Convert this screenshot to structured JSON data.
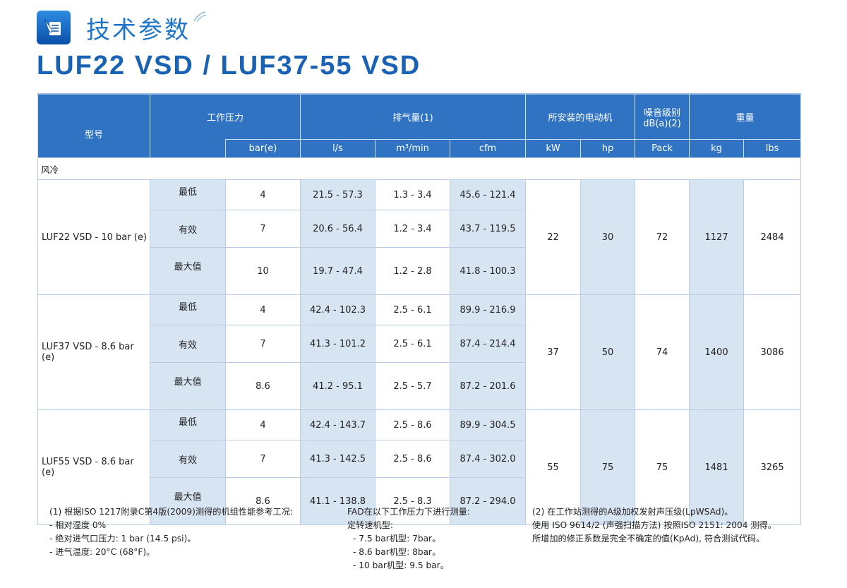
{
  "header": {
    "title": "技术参数",
    "subtitle": "LUF22 VSD / LUF37-55 VSD"
  },
  "table": {
    "headers": {
      "model": "型号",
      "pressure": "工作压力",
      "fad": "排气量(1)",
      "motor": "所安装的电动机",
      "noise_line1": "噪音级别",
      "noise_line2": "dB(a)(2)",
      "weight": "重量"
    },
    "units": [
      "bar(e)",
      "l/s",
      "m³/min",
      "cfm",
      "kW",
      "hp",
      "Pack",
      "kg",
      "lbs"
    ],
    "section_label": "风冷",
    "models": [
      {
        "name": "LUF22 VSD - 10 bar (e)",
        "kw": "22",
        "hp": "30",
        "noise": "72",
        "kg": "1127",
        "lbs": "2484",
        "rows": [
          {
            "level": "最低",
            "bar": "4",
            "ls": "21.5 - 57.3",
            "m3": "1.3 - 3.4",
            "cfm": "45.6 - 121.4"
          },
          {
            "level": "有效",
            "bar": "7",
            "ls": "20.6 - 56.4",
            "m3": "1.2 - 3.4",
            "cfm": "43.7 - 119.5"
          },
          {
            "level": "最大值",
            "bar": "10",
            "ls": "19.7 - 47.4",
            "m3": "1.2 - 2.8",
            "cfm": "41.8 - 100.3"
          }
        ]
      },
      {
        "name": "LUF37 VSD - 8.6 bar (e)",
        "kw": "37",
        "hp": "50",
        "noise": "74",
        "kg": "1400",
        "lbs": "3086",
        "rows": [
          {
            "level": "最低",
            "bar": "4",
            "ls": "42.4 - 102.3",
            "m3": "2.5 - 6.1",
            "cfm": "89.9 - 216.9"
          },
          {
            "level": "有效",
            "bar": "7",
            "ls": "41.3 - 101.2",
            "m3": "2.5 - 6.1",
            "cfm": "87.4 - 214.4"
          },
          {
            "level": "最大值",
            "bar": "8.6",
            "ls": "41.2 - 95.1",
            "m3": "2.5 - 5.7",
            "cfm": "87.2 - 201.6"
          }
        ]
      },
      {
        "name": "LUF55 VSD - 8.6 bar (e)",
        "kw": "55",
        "hp": "75",
        "noise": "75",
        "kg": "1481",
        "lbs": "3265",
        "rows": [
          {
            "level": "最低",
            "bar": "4",
            "ls": "42.4 - 143.7",
            "m3": "2.5 - 8.6",
            "cfm": "89.9 - 304.5"
          },
          {
            "level": "有效",
            "bar": "7",
            "ls": "41.3 - 142.5",
            "m3": "2.5 - 8.6",
            "cfm": "87.4 - 302.0"
          },
          {
            "level": "最大值",
            "bar": "8.6",
            "ls": "41.1 - 138.8",
            "m3": "2.5 - 8.3",
            "cfm": "87.2 - 294.0"
          }
        ]
      }
    ]
  },
  "notes": {
    "note1": [
      "(1) 根据ISO 1217附录C第4版(2009)测得的机组性能参考工况:",
      "- 相对湿度 0%",
      "- 绝对进气口压力: 1 bar (14.5 psi)。",
      "- 进气温度: 20°C (68°F)。"
    ],
    "note2": [
      "FAD在以下工作压力下进行测量:",
      "定转速机型:",
      "- 7.5 bar机型: 7bar。",
      "- 8.6 bar机型: 8bar。",
      "- 10 bar机型: 9.5 bar。"
    ],
    "note3": [
      "(2) 在工作站测得的A级加权发射声压级(LpWSAd)。",
      "使用 ISO 9614/2 (声强扫描方法) 按照ISO 2151: 2004 测得。",
      "所增加的修正系数是完全不确定的值(KpAd), 符合测试代码。"
    ]
  }
}
